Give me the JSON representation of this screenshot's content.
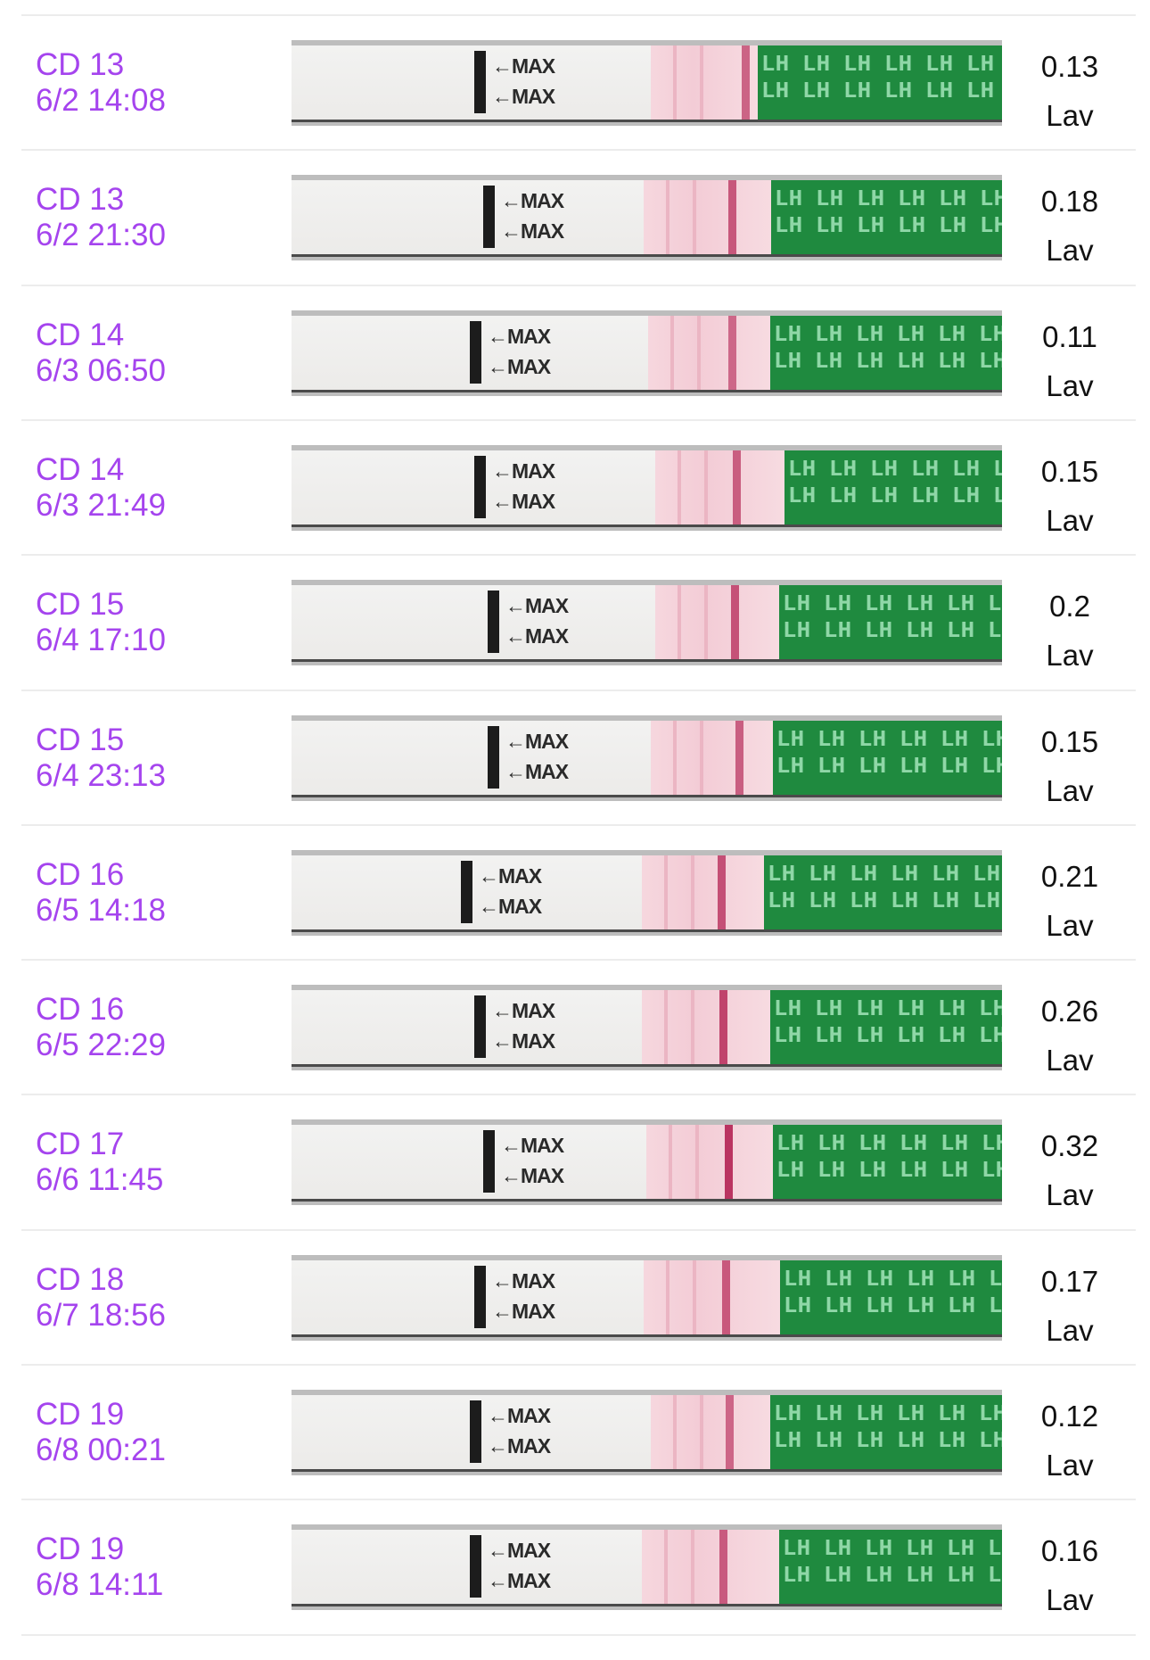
{
  "rows": [
    {
      "cycle_day": "CD 13",
      "date_time": "6/2 14:08",
      "value": "0.13",
      "brand": "Lav",
      "max_label": "←MAX",
      "strip_text": "LH",
      "line_intensity": 0.13
    },
    {
      "cycle_day": "CD 13",
      "date_time": "6/2 21:30",
      "value": "0.18",
      "brand": "Lav",
      "max_label": "←MAX",
      "strip_text": "LH",
      "line_intensity": 0.18
    },
    {
      "cycle_day": "CD 14",
      "date_time": "6/3 06:50",
      "value": "0.11",
      "brand": "Lav",
      "max_label": "←MAX",
      "strip_text": "LH",
      "line_intensity": 0.11
    },
    {
      "cycle_day": "CD 14",
      "date_time": "6/3 21:49",
      "value": "0.15",
      "brand": "Lav",
      "max_label": "←MAX",
      "strip_text": "LH",
      "line_intensity": 0.15
    },
    {
      "cycle_day": "CD 15",
      "date_time": "6/4 17:10",
      "value": "0.2",
      "brand": "Lav",
      "max_label": "←MAX",
      "strip_text": "LH",
      "line_intensity": 0.2
    },
    {
      "cycle_day": "CD 15",
      "date_time": "6/4 23:13",
      "value": "0.15",
      "brand": "Lav",
      "max_label": "←MAX",
      "strip_text": "LH",
      "line_intensity": 0.15
    },
    {
      "cycle_day": "CD 16",
      "date_time": "6/5 14:18",
      "value": "0.21",
      "brand": "Lav",
      "max_label": "←MAX",
      "strip_text": "LH",
      "line_intensity": 0.21
    },
    {
      "cycle_day": "CD 16",
      "date_time": "6/5 22:29",
      "value": "0.26",
      "brand": "Lav",
      "max_label": "←MAX",
      "strip_text": "LH",
      "line_intensity": 0.26
    },
    {
      "cycle_day": "CD 17",
      "date_time": "6/6 11:45",
      "value": "0.32",
      "brand": "Lav",
      "max_label": "←MAX",
      "strip_text": "LH",
      "line_intensity": 0.32
    },
    {
      "cycle_day": "CD 18",
      "date_time": "6/7 18:56",
      "value": "0.17",
      "brand": "Lav",
      "max_label": "←MAX",
      "strip_text": "LH",
      "line_intensity": 0.17
    },
    {
      "cycle_day": "CD 19",
      "date_time": "6/8 00:21",
      "value": "0.12",
      "brand": "Lav",
      "max_label": "←MAX",
      "strip_text": "LH",
      "line_intensity": 0.12
    },
    {
      "cycle_day": "CD 19",
      "date_time": "6/8 14:11",
      "value": "0.16",
      "brand": "Lav",
      "max_label": "←MAX",
      "strip_text": "LH",
      "line_intensity": 0.16
    }
  ],
  "colors": {
    "label": "#a544ee",
    "value": "#111111",
    "test_line": "#b9315e",
    "strip_green": "#1f8a3f"
  }
}
